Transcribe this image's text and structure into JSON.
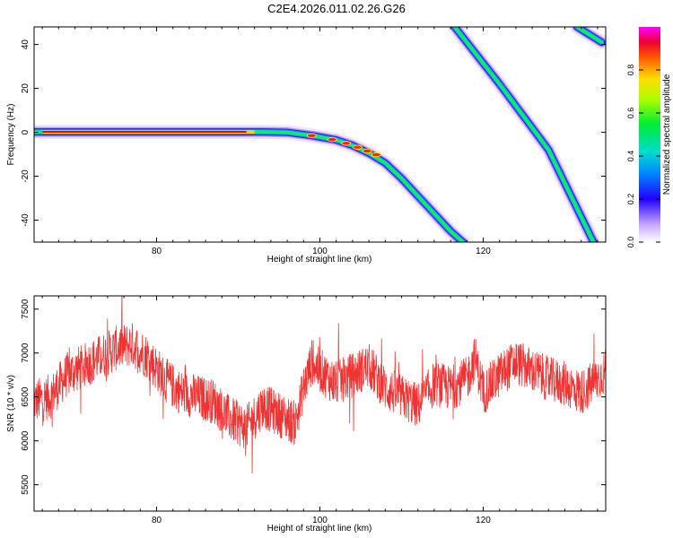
{
  "title": "C2E4.2026.011.02.26.G26",
  "chart_data": [
    {
      "type": "heatmap",
      "xlabel": "Height of straight line (km)",
      "ylabel": "Frequency (Hz)",
      "xlim": [
        65,
        135
      ],
      "ylim": [
        -50,
        48
      ],
      "xticks": [
        "80",
        "100",
        "120"
      ],
      "yticks": [
        "-40",
        "-20",
        "0",
        "20",
        "40"
      ],
      "colorbar": {
        "label": "Normalized spectral amplitude",
        "range": [
          0,
          1
        ],
        "ticks": [
          "0.0",
          "0.2",
          "0.4",
          "0.6",
          "0.8"
        ]
      },
      "traces": [
        {
          "name": "main-trace",
          "x": [
            65,
            80,
            93,
            96,
            99,
            102,
            104,
            106,
            108,
            110,
            112,
            114,
            116,
            117.5
          ],
          "y": [
            0.2,
            0.2,
            0.2,
            0,
            -1.5,
            -3.5,
            -6,
            -9.5,
            -14,
            -21,
            -29,
            -37,
            -45,
            -50
          ]
        },
        {
          "name": "diagonal-trace",
          "x": [
            116.5,
            122,
            128,
            133.5
          ],
          "y": [
            48,
            22,
            -8,
            -50
          ]
        },
        {
          "name": "corner-trace",
          "x": [
            131.5,
            134.5
          ],
          "y": [
            48,
            41
          ]
        }
      ]
    },
    {
      "type": "line",
      "xlabel": "Height of straight line (km)",
      "ylabel": "SNR (10 * v/v)",
      "xlim": [
        65,
        135
      ],
      "ylim": [
        5200,
        7650
      ],
      "xticks": [
        "80",
        "100",
        "120"
      ],
      "yticks": [
        "5500",
        "6000",
        "6500",
        "7000",
        "7500"
      ],
      "series": [
        {
          "name": "SNR",
          "color": "#ee3333",
          "x": [
            65,
            67,
            69,
            71,
            73,
            75,
            77,
            79,
            81,
            83,
            85,
            87,
            89,
            91,
            93,
            95,
            97,
            98,
            99,
            100,
            102,
            104,
            106,
            108,
            110,
            112,
            114,
            116,
            118,
            119,
            120,
            122,
            124,
            126,
            128,
            130,
            132,
            134,
            135
          ],
          "values": [
            6450,
            6500,
            6750,
            6850,
            6950,
            7050,
            7100,
            6950,
            6700,
            6550,
            6500,
            6450,
            6250,
            6150,
            6400,
            6300,
            6200,
            6600,
            6900,
            6800,
            6650,
            6750,
            6850,
            6600,
            6500,
            6400,
            6650,
            6600,
            6700,
            6950,
            6550,
            6750,
            6900,
            6800,
            6700,
            6650,
            6550,
            6700,
            6800
          ]
        }
      ]
    }
  ]
}
